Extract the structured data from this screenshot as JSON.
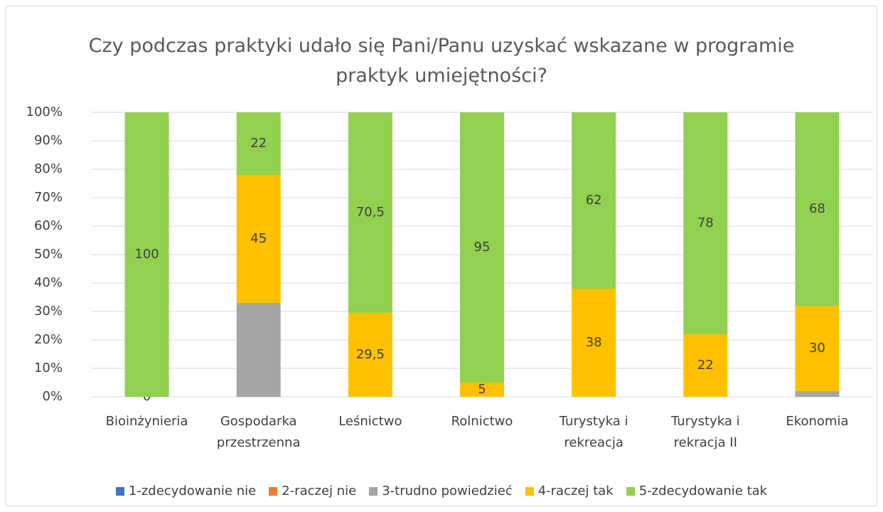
{
  "chart_data": {
    "type": "stacked_bar_percent",
    "title": "Czy podczas praktyki udało się Pani/Panu uzyskać wskazane w programie praktyk umiejętności?",
    "categories": [
      "Bioinżynieria",
      "Gospodarka przestrzenna",
      "Leśnictwo",
      "Rolnictwo",
      "Turystyka i rekreacja",
      "Turystyka i rekracja II",
      "Ekonomia"
    ],
    "series": [
      {
        "name": "1-zdecydowanie nie",
        "color": "#4472c4",
        "values": [
          0,
          0,
          0,
          0,
          0,
          0,
          0
        ],
        "data_labels": false
      },
      {
        "name": "2-raczej nie",
        "color": "#ed7d31",
        "values": [
          0,
          0,
          0,
          0,
          0,
          0,
          0
        ],
        "data_labels": false
      },
      {
        "name": "3-trudno powiedzieć",
        "color": "#a5a5a5",
        "values": [
          0,
          33,
          0,
          0,
          0,
          0,
          2
        ],
        "data_labels": false
      },
      {
        "name": "4-raczej tak",
        "color": "#ffc000",
        "values": [
          0,
          45,
          29.5,
          5,
          38,
          22,
          30
        ],
        "value_labels": [
          "0",
          "45",
          "29,5",
          "5",
          "38",
          "22",
          "30"
        ],
        "data_labels": true
      },
      {
        "name": "5-zdecydowanie tak",
        "color": "#92d050",
        "values": [
          100,
          22,
          70.5,
          95,
          62,
          78,
          68
        ],
        "value_labels": [
          "100",
          "22",
          "70,5",
          "95",
          "62",
          "78",
          "68"
        ],
        "data_labels": true
      }
    ],
    "ylim": [
      0,
      100
    ],
    "yticks": [
      {
        "value": 0,
        "label": "0%"
      },
      {
        "value": 10,
        "label": "10%"
      },
      {
        "value": 20,
        "label": "20%"
      },
      {
        "value": 30,
        "label": "30%"
      },
      {
        "value": 40,
        "label": "40%"
      },
      {
        "value": 50,
        "label": "50%"
      },
      {
        "value": 60,
        "label": "60%"
      },
      {
        "value": 70,
        "label": "70%"
      },
      {
        "value": 80,
        "label": "80%"
      },
      {
        "value": 90,
        "label": "90%"
      },
      {
        "value": 100,
        "label": "100%"
      }
    ],
    "grid": true,
    "legend": "bottom"
  }
}
